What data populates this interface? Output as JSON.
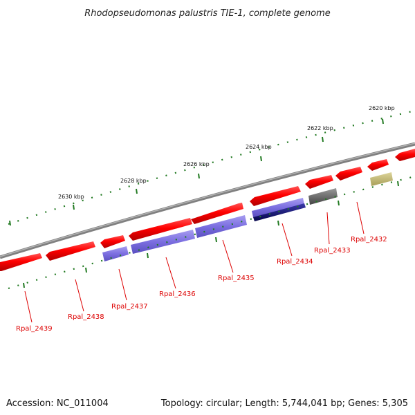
{
  "title": "Rhodopseudomonas palustris TIE-1, complete genome",
  "footer": {
    "accession": "Accession: NC_011004",
    "summary": "Topology: circular; Length: 5,744,041 bp; Genes: 5,305"
  },
  "scale_labels": [
    "2620 kbp",
    "2622 kbp",
    "2624 kbp",
    "2626 kbp",
    "2628 kbp",
    "2630 kbp"
  ],
  "gene_labels": [
    "Rpal_2432",
    "Rpal_2433",
    "Rpal_2434",
    "Rpal_2435",
    "Rpal_2436",
    "Rpal_2437",
    "Rpal_2438",
    "Rpal_2439"
  ],
  "colors": {
    "forward_gene": "#ff0000",
    "reverse_gene": "#7b6ee0",
    "reverse_gene_dark": "#10107a",
    "gray_gene": "#666666",
    "olive_gene": "#c8c078",
    "backbone": "#888888",
    "ticks": "#227a22",
    "label_red": "#dd0000"
  }
}
